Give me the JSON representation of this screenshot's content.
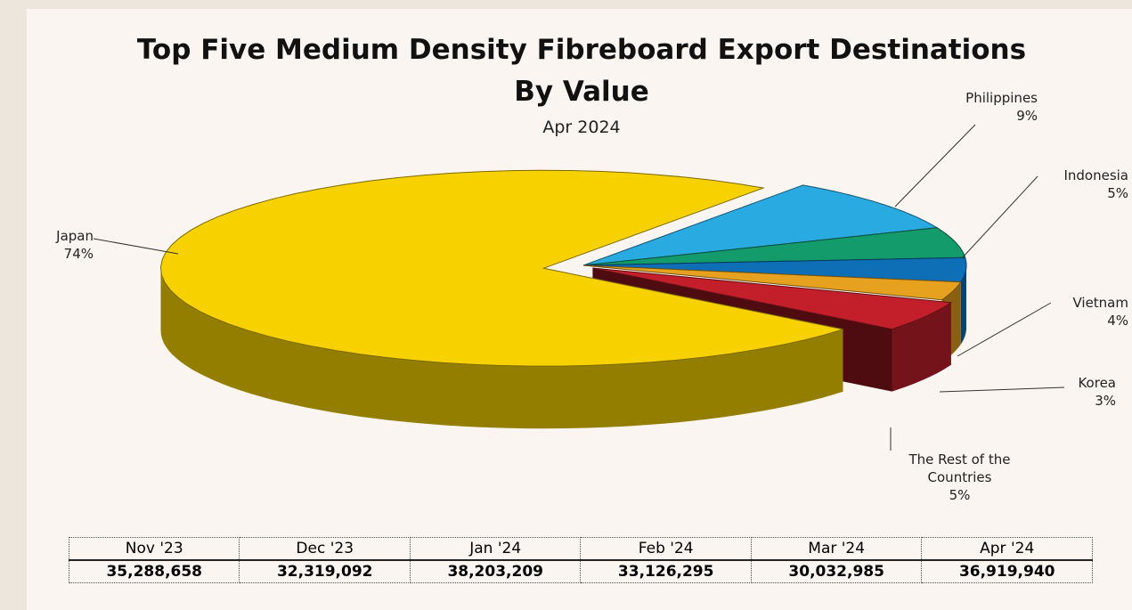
{
  "chart_data": {
    "type": "pie",
    "title": [
      "Top Five Medium Density Fibreboard Export Destinations",
      "By Value"
    ],
    "subtitle": "Apr 2024",
    "categories": [
      "Japan",
      "Philippines",
      "Indonesia",
      "Vietnam",
      "Korea",
      "The Rest of the Countries"
    ],
    "values": [
      74,
      9,
      5,
      4,
      3,
      5
    ],
    "value_labels": [
      "74%",
      "9%",
      "5%",
      "4%",
      "3%",
      "5%"
    ],
    "colors": [
      "#f7d200",
      "#29abe2",
      "#149b6c",
      "#0f6fb6",
      "#e6a21e",
      "#c21f2a"
    ]
  },
  "table": {
    "header": [
      "Nov '23",
      "Dec '23",
      "Jan '24",
      "Feb '24",
      "Mar '24",
      "Apr '24"
    ],
    "rows": [
      [
        "35,288,658",
        "32,319,092",
        "38,203,209",
        "33,126,295",
        "30,032,985",
        "36,919,940"
      ]
    ]
  }
}
